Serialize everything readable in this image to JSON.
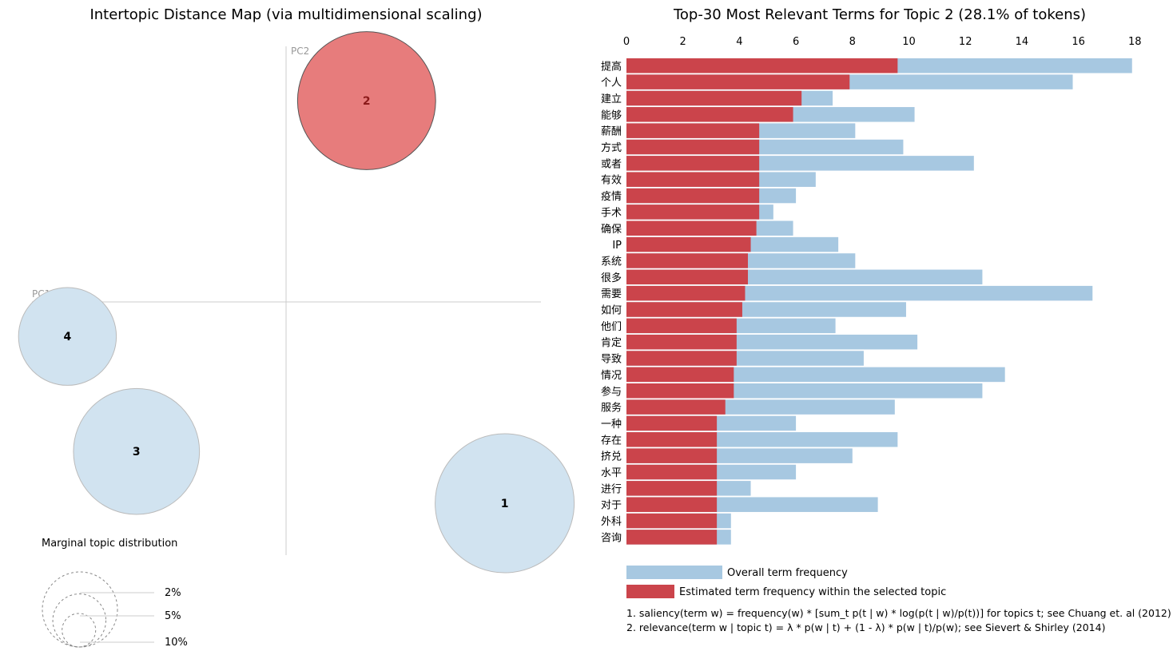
{
  "left_panel": {
    "title": "Intertopic Distance Map (via multidimensional scaling)",
    "pc1_label": "PC1",
    "pc2_label": "PC2",
    "marginal_title": "Marginal topic distribution",
    "marginal_legend": [
      {
        "label": "2%",
        "value": 0.02
      },
      {
        "label": "5%",
        "value": 0.05
      },
      {
        "label": "10%",
        "value": 0.1
      }
    ],
    "selected_color": "#e77c7c",
    "unselected_color": "#d1e3f0"
  },
  "right_panel": {
    "title": "Top-30 Most Relevant Terms for Topic 2 (28.1% of tokens)",
    "legend_overall": "Overall term frequency",
    "legend_estimated": "Estimated term frequency within the selected topic",
    "overall_color": "#a7c8e1",
    "topic_color": "#cb444b",
    "note1": "1. saliency(term w) = frequency(w) * [sum_t p(t | w) * log(p(t | w)/p(t))] for topics t; see Chuang et. al (2012)",
    "note2": "2. relevance(term w | topic t) = λ * p(w | t) + (1 - λ) * p(w | t)/p(w); see Sievert & Shirley (2014)"
  },
  "chart_data": [
    {
      "type": "scatter",
      "title": "Intertopic Distance Map (via multidimensional scaling)",
      "xlabel": "PC1",
      "ylabel": "PC2",
      "selected_topic": 2,
      "topics": [
        {
          "id": 1,
          "pc1": 0.38,
          "pc2": -0.35,
          "size_pct": 28.5
        },
        {
          "id": 2,
          "pc1": 0.14,
          "pc2": 0.35,
          "size_pct": 28.1
        },
        {
          "id": 3,
          "pc1": -0.26,
          "pc2": -0.26,
          "size_pct": 23.4
        },
        {
          "id": 4,
          "pc1": -0.38,
          "pc2": -0.06,
          "size_pct": 14.1
        }
      ]
    },
    {
      "type": "bar",
      "title": "Top-30 Most Relevant Terms for Topic 2 (28.1% of tokens)",
      "orientation": "horizontal",
      "xlim": [
        0,
        18
      ],
      "xticks": [
        0,
        2,
        4,
        6,
        8,
        10,
        12,
        14,
        16,
        18
      ],
      "categories": [
        "提高",
        "个人",
        "建立",
        "能够",
        "薪酬",
        "方式",
        "或者",
        "有效",
        "疫情",
        "手术",
        "确保",
        "IP",
        "系统",
        "很多",
        "需要",
        "如何",
        "他们",
        "肯定",
        "导致",
        "情况",
        "参与",
        "服务",
        "一种",
        "存在",
        "挤兑",
        "水平",
        "进行",
        "对于",
        "外科",
        "咨询"
      ],
      "series": [
        {
          "name": "Overall term frequency",
          "values": [
            17.9,
            15.8,
            7.3,
            10.2,
            8.1,
            9.8,
            12.3,
            6.7,
            6.0,
            5.2,
            5.9,
            7.5,
            8.1,
            12.6,
            16.5,
            9.9,
            7.4,
            10.3,
            8.4,
            13.4,
            12.6,
            9.5,
            6.0,
            9.6,
            8.0,
            6.0,
            4.4,
            8.9,
            3.7,
            3.7
          ]
        },
        {
          "name": "Estimated term frequency within the selected topic",
          "values": [
            9.6,
            7.9,
            6.2,
            5.9,
            4.7,
            4.7,
            4.7,
            4.7,
            4.7,
            4.7,
            4.6,
            4.4,
            4.3,
            4.3,
            4.2,
            4.1,
            3.9,
            3.9,
            3.9,
            3.8,
            3.8,
            3.5,
            3.2,
            3.2,
            3.2,
            3.2,
            3.2,
            3.2,
            3.2,
            3.2
          ]
        }
      ]
    }
  ]
}
